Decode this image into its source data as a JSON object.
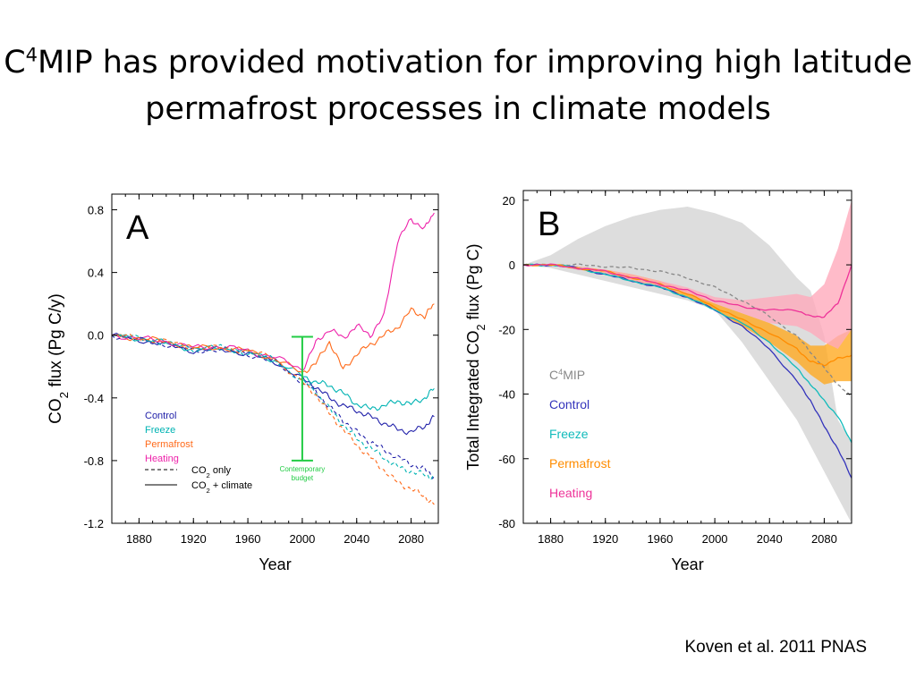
{
  "slide": {
    "title_pre": "C",
    "title_sup": "4",
    "title_rest": "MIP has provided motivation for improving high latitude permafrost processes in climate models",
    "citation": "Koven et al. 2011 PNAS"
  },
  "chart_data": [
    {
      "type": "line",
      "panel_label": "A",
      "title": "",
      "xlabel": "Year",
      "ylabel": "CO2 flux (Pg C/y)",
      "ylabel_parts": [
        "CO",
        "2",
        " flux (Pg C/y)"
      ],
      "xlim": [
        1860,
        2100
      ],
      "ylim": [
        -1.2,
        0.9
      ],
      "xticks": [
        1880,
        1920,
        1960,
        2000,
        2040,
        2080
      ],
      "yticks": [
        0.8,
        0.4,
        0.0,
        -0.4,
        -0.8,
        -1.2
      ],
      "ytick_labels": [
        "0.8",
        "0.4",
        "0.0",
        "-0.4",
        "-0.8",
        "-1.2"
      ],
      "grid": false,
      "legend_position": "bottom-left",
      "x": [
        1860,
        1880,
        1900,
        1920,
        1940,
        1960,
        1980,
        2000,
        2010,
        2020,
        2030,
        2040,
        2050,
        2060,
        2070,
        2080,
        2090,
        2097
      ],
      "series": [
        {
          "name": "Control",
          "color": "#2222aa",
          "style": "solid",
          "values": [
            0.0,
            -0.03,
            -0.06,
            -0.1,
            -0.09,
            -0.12,
            -0.17,
            -0.28,
            -0.33,
            -0.4,
            -0.45,
            -0.48,
            -0.52,
            -0.56,
            -0.6,
            -0.62,
            -0.58,
            -0.52
          ]
        },
        {
          "name": "Freeze",
          "color": "#00b3b3",
          "style": "solid",
          "values": [
            0.0,
            -0.02,
            -0.05,
            -0.09,
            -0.08,
            -0.11,
            -0.16,
            -0.26,
            -0.3,
            -0.32,
            -0.37,
            -0.44,
            -0.47,
            -0.45,
            -0.42,
            -0.44,
            -0.4,
            -0.34
          ]
        },
        {
          "name": "Permafrost",
          "color": "#ff6a1a",
          "style": "solid",
          "values": [
            0.0,
            -0.02,
            -0.04,
            -0.08,
            -0.08,
            -0.1,
            -0.15,
            -0.24,
            -0.18,
            -0.04,
            -0.22,
            -0.12,
            -0.06,
            0.0,
            0.05,
            0.16,
            0.12,
            0.2
          ]
        },
        {
          "name": "Heating",
          "color": "#ee22aa",
          "style": "solid",
          "values": [
            0.0,
            -0.02,
            -0.04,
            -0.08,
            -0.07,
            -0.1,
            -0.14,
            -0.22,
            -0.05,
            0.04,
            -0.02,
            0.06,
            0.0,
            0.12,
            0.6,
            0.74,
            0.68,
            0.78
          ]
        },
        {
          "name": "Control CO2 only",
          "color": "#2222aa",
          "style": "dashed",
          "values": [
            0.0,
            -0.03,
            -0.06,
            -0.1,
            -0.09,
            -0.12,
            -0.17,
            -0.3,
            -0.36,
            -0.46,
            -0.54,
            -0.62,
            -0.68,
            -0.73,
            -0.78,
            -0.82,
            -0.86,
            -0.9
          ]
        },
        {
          "name": "Freeze CO2 only",
          "color": "#00b3b3",
          "style": "dashed",
          "values": [
            0.0,
            -0.02,
            -0.05,
            -0.09,
            -0.08,
            -0.11,
            -0.16,
            -0.29,
            -0.36,
            -0.47,
            -0.57,
            -0.66,
            -0.72,
            -0.78,
            -0.84,
            -0.87,
            -0.89,
            -0.91
          ]
        },
        {
          "name": "Permafrost CO2 only",
          "color": "#ff6a1a",
          "style": "dashed",
          "values": [
            0.0,
            -0.02,
            -0.04,
            -0.08,
            -0.08,
            -0.1,
            -0.15,
            -0.3,
            -0.38,
            -0.5,
            -0.6,
            -0.7,
            -0.78,
            -0.86,
            -0.94,
            -0.98,
            -1.03,
            -1.08
          ]
        }
      ],
      "annotation": {
        "text_lines": [
          "Contemporary",
          "budget"
        ],
        "color": "#22cc44",
        "x": 2000,
        "y_low": -0.8,
        "y_high": -0.01
      },
      "legend": {
        "entries": [
          {
            "label": "Control",
            "color": "#2222aa"
          },
          {
            "label": "Freeze",
            "color": "#00b3b3"
          },
          {
            "label": "Permafrost",
            "color": "#ff6a1a"
          },
          {
            "label": "Heating",
            "color": "#ee22aa"
          }
        ],
        "style_entries": [
          {
            "label_parts": [
              "CO",
              "2",
              " only"
            ],
            "style": "dashed"
          },
          {
            "label_parts": [
              "CO",
              "2",
              " + climate"
            ],
            "style": "solid"
          }
        ]
      }
    },
    {
      "type": "line",
      "panel_label": "B",
      "title": "",
      "xlabel": "Year",
      "ylabel": "Total Integrated CO2 flux (Pg C)",
      "ylabel_parts": [
        "Total Integrated CO",
        "2",
        " flux (Pg C)"
      ],
      "xlim": [
        1860,
        2100
      ],
      "ylim": [
        -80,
        23
      ],
      "xticks": [
        1880,
        1920,
        1960,
        2000,
        2040,
        2080
      ],
      "yticks": [
        20,
        0,
        -20,
        -40,
        -60,
        -80
      ],
      "grid": false,
      "legend_position": "left-middle",
      "x": [
        1860,
        1880,
        1900,
        1920,
        1940,
        1960,
        1980,
        2000,
        2020,
        2040,
        2060,
        2070,
        2080,
        2090,
        2100
      ],
      "band": {
        "name": "C4MIP range",
        "color": "#dddddd",
        "upper": [
          0,
          3,
          8,
          12,
          15,
          17,
          18,
          16,
          13,
          6,
          -4,
          -8,
          -22,
          -48,
          -55
        ],
        "lower": [
          0,
          -1,
          -3,
          -5,
          -7,
          -9,
          -11,
          -14,
          -24,
          -36,
          -48,
          -56,
          -64,
          -72,
          -80
        ]
      },
      "series": [
        {
          "name": "C4MIP",
          "label_parts": [
            "C",
            "4",
            "MIP"
          ],
          "color": "#888888",
          "style": "dashed",
          "values": [
            0,
            0,
            0,
            -0.5,
            -1,
            -2,
            -4,
            -7,
            -11,
            -16,
            -22,
            -27,
            -32,
            -37,
            -41
          ]
        },
        {
          "name": "Control",
          "color": "#3333bb",
          "style": "solid",
          "values": [
            0,
            0,
            -1,
            -3,
            -5,
            -7,
            -10,
            -14,
            -19,
            -26,
            -36,
            -42,
            -50,
            -57,
            -66
          ]
        },
        {
          "name": "Freeze",
          "color": "#11bbbb",
          "style": "solid",
          "values": [
            0,
            0,
            -1,
            -3,
            -5,
            -7,
            -10,
            -14,
            -18,
            -24,
            -32,
            -37,
            -42,
            -47,
            -55
          ]
        },
        {
          "name": "Permafrost",
          "color": "#ff8c00",
          "style": "solid",
          "values": [
            0,
            0,
            -1,
            -2,
            -4,
            -6,
            -9,
            -13,
            -17,
            -21,
            -26,
            -30,
            -31,
            -29,
            -28
          ]
        },
        {
          "name": "Heating",
          "color": "#ee3399",
          "style": "solid",
          "values": [
            0,
            0,
            -1,
            -2,
            -4,
            -6,
            -8,
            -11,
            -13,
            -14,
            -14,
            -16,
            -16,
            -12,
            0
          ]
        }
      ],
      "series_bands": [
        {
          "name": "Permafrost",
          "color": "#ffaa22",
          "upper": [
            0,
            0,
            -0.5,
            -1.5,
            -3,
            -5,
            -8,
            -12,
            -15,
            -18,
            -22,
            -25,
            -25,
            -22,
            -20
          ],
          "lower": [
            0,
            0,
            -1.5,
            -2.5,
            -5,
            -7,
            -10,
            -14,
            -19,
            -24,
            -30,
            -34,
            -37,
            -36,
            -36
          ]
        },
        {
          "name": "Heating",
          "color": "#ffaabb",
          "upper": [
            0,
            0,
            -0.5,
            -1.5,
            -3,
            -5,
            -7,
            -10,
            -11,
            -10,
            -9,
            -10,
            -6,
            5,
            20
          ],
          "lower": [
            0,
            0,
            -1.5,
            -2.5,
            -5,
            -7,
            -9,
            -12,
            -15,
            -18,
            -19,
            -21,
            -24,
            -26,
            -20
          ]
        }
      ]
    }
  ]
}
